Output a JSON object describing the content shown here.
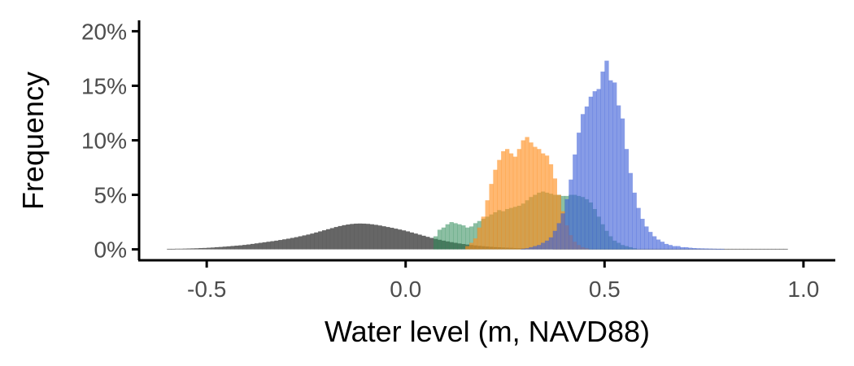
{
  "chart_data": {
    "type": "histogram",
    "xlabel": "Water level (m, NAVD88)",
    "ylabel": "Frequency",
    "xlim": [
      -0.67,
      1.08
    ],
    "ylim": [
      -0.01,
      0.21
    ],
    "x_ticks": [
      -0.5,
      0.0,
      0.5,
      1.0
    ],
    "x_tick_labels": [
      "-0.5",
      "0.0",
      "0.5",
      "1.0"
    ],
    "y_ticks": [
      0,
      0.05,
      0.1,
      0.15,
      0.2
    ],
    "y_tick_labels": [
      "0%",
      "5%",
      "10%",
      "15%",
      "20%"
    ],
    "grid": false,
    "legend": "none",
    "bin_width": 0.01,
    "series": [
      {
        "color": "#595959",
        "opacity": 0.92,
        "x_start": -0.6,
        "values": [
          0.0005,
          0.0005,
          0.0006,
          0.0006,
          0.0007,
          0.0008,
          0.0009,
          0.001,
          0.0012,
          0.0013,
          0.0015,
          0.0017,
          0.002,
          0.0022,
          0.0025,
          0.0028,
          0.0031,
          0.0034,
          0.0037,
          0.0041,
          0.0045,
          0.005,
          0.0055,
          0.006,
          0.0065,
          0.007,
          0.0075,
          0.008,
          0.0086,
          0.0092,
          0.0098,
          0.0105,
          0.0112,
          0.012,
          0.0128,
          0.0136,
          0.0145,
          0.0155,
          0.0165,
          0.0175,
          0.0185,
          0.0195,
          0.0205,
          0.0214,
          0.0222,
          0.0228,
          0.0233,
          0.0236,
          0.0237,
          0.0236,
          0.0234,
          0.023,
          0.0225,
          0.0219,
          0.0212,
          0.0205,
          0.0198,
          0.019,
          0.0182,
          0.0174,
          0.0165,
          0.0155,
          0.0145,
          0.0135,
          0.0125,
          0.0115,
          0.0105,
          0.0096,
          0.0088,
          0.008,
          0.0073,
          0.0066,
          0.006,
          0.0054,
          0.0049,
          0.0044,
          0.004,
          0.0036,
          0.0032,
          0.0029,
          0.0026,
          0.0023,
          0.0021,
          0.0019,
          0.0017,
          0.0015,
          0.0014,
          0.0012,
          0.0011,
          0.001,
          0.0009,
          0.0008,
          0.0008,
          0.0007,
          0.0007,
          0.0006,
          0.0006,
          0.0005,
          0.0005,
          0.0005,
          0.0005,
          0.0005,
          0.0005,
          0.0005,
          0.0005,
          0.0005,
          0.0005,
          0.0005,
          0.0005,
          0.0005,
          0.0005,
          0.0005,
          0.0005,
          0.0005,
          0.0005,
          0.0005,
          0.0005,
          0.0005,
          0.0005,
          0.0005,
          0.0005,
          0.0005,
          0.0005,
          0.0005,
          0.0005,
          0.0005,
          0.0005,
          0.0005,
          0.0005,
          0.0005,
          0.0005,
          0.0005,
          0.0005,
          0.0005,
          0.0005,
          0.0005,
          0.0005,
          0.0005,
          0.0005,
          0.0005,
          0.0005,
          0.0005,
          0.0005,
          0.0005,
          0.0005,
          0.0005,
          0.0005,
          0.0005,
          0.0005,
          0.0005,
          0.0005,
          0.0005,
          0.0005,
          0.0005,
          0.0005,
          0.0005
        ]
      },
      {
        "color": "#2e8b57",
        "opacity": 0.55,
        "x_start": 0.07,
        "values": [
          0.012,
          0.018,
          0.02,
          0.023,
          0.025,
          0.024,
          0.023,
          0.022,
          0.02,
          0.021,
          0.024,
          0.026,
          0.028,
          0.03,
          0.032,
          0.034,
          0.036,
          0.035,
          0.037,
          0.038,
          0.039,
          0.04,
          0.042,
          0.045,
          0.048,
          0.05,
          0.052,
          0.053,
          0.052,
          0.051,
          0.05,
          0.05,
          0.049,
          0.049,
          0.05,
          0.05,
          0.049,
          0.048,
          0.046,
          0.043,
          0.037,
          0.03,
          0.023,
          0.017,
          0.012,
          0.008,
          0.006,
          0.004,
          0.003,
          0.002,
          0.001
        ]
      },
      {
        "color": "#ff8c1a",
        "opacity": 0.62,
        "x_start": 0.15,
        "values": [
          0.003,
          0.006,
          0.01,
          0.02,
          0.03,
          0.045,
          0.06,
          0.073,
          0.082,
          0.09,
          0.092,
          0.088,
          0.085,
          0.092,
          0.1,
          0.103,
          0.098,
          0.094,
          0.092,
          0.088,
          0.086,
          0.078,
          0.065,
          0.05,
          0.035,
          0.022,
          0.013,
          0.007,
          0.004,
          0.002,
          0.001
        ]
      },
      {
        "color": "#3d5fd9",
        "opacity": 0.62,
        "x_start": 0.29,
        "values": [
          0.0005,
          0.001,
          0.002,
          0.003,
          0.004,
          0.006,
          0.008,
          0.011,
          0.017,
          0.024,
          0.033,
          0.046,
          0.064,
          0.087,
          0.107,
          0.124,
          0.131,
          0.14,
          0.145,
          0.147,
          0.163,
          0.173,
          0.155,
          0.153,
          0.132,
          0.12,
          0.092,
          0.07,
          0.052,
          0.038,
          0.028,
          0.021,
          0.016,
          0.012,
          0.009,
          0.007,
          0.005,
          0.004,
          0.003,
          0.003,
          0.002,
          0.002,
          0.0015,
          0.0012,
          0.001,
          0.0009,
          0.0008,
          0.0007,
          0.0006,
          0.0005,
          0.0005
        ]
      }
    ]
  }
}
